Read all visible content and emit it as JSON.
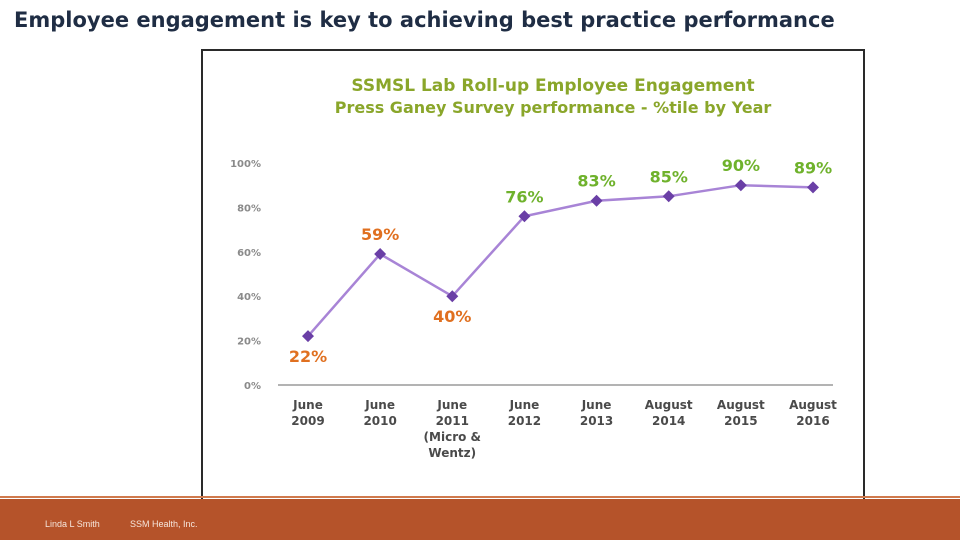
{
  "slide": {
    "title": "Employee engagement is key to achieving best practice performance",
    "footer_author": "Linda L Smith",
    "footer_org": "SSM Health, Inc."
  },
  "colors": {
    "title": "#1f2d44",
    "chart_title": "#8aa62a",
    "line": "#a884d6",
    "marker": "#6a3fa6",
    "label_low": "#e07020",
    "label_high": "#6fb22c",
    "footer": "#b5532a"
  },
  "chart_data": {
    "type": "line",
    "title": "SSMSL Lab Roll-up Employee Engagement",
    "subtitle": "Press Ganey Survey performance - %tile by Year",
    "categories": [
      [
        "June",
        "2009"
      ],
      [
        "June",
        "2010"
      ],
      [
        "June",
        "2011",
        "(Micro &",
        "Wentz)"
      ],
      [
        "June",
        "2012"
      ],
      [
        "June",
        "2013"
      ],
      [
        "August",
        "2014"
      ],
      [
        "August",
        "2015"
      ],
      [
        "August",
        "2016"
      ]
    ],
    "values": [
      22,
      59,
      40,
      76,
      83,
      85,
      90,
      89
    ],
    "data_labels": [
      "22%",
      "59%",
      "40%",
      "76%",
      "83%",
      "85%",
      "90%",
      "89%"
    ],
    "label_position": [
      "below",
      "above",
      "below",
      "above",
      "above",
      "above",
      "above",
      "above"
    ],
    "label_color": [
      "low",
      "low",
      "low",
      "high",
      "high",
      "high",
      "high",
      "high"
    ],
    "ylim": [
      0,
      100
    ],
    "yticks": [
      0,
      20,
      40,
      60,
      80,
      100
    ],
    "ytick_labels": [
      "0%",
      "20%",
      "40%",
      "60%",
      "80%",
      "100%"
    ],
    "xlabel": "",
    "ylabel": "",
    "grid": false,
    "legend": "none"
  }
}
